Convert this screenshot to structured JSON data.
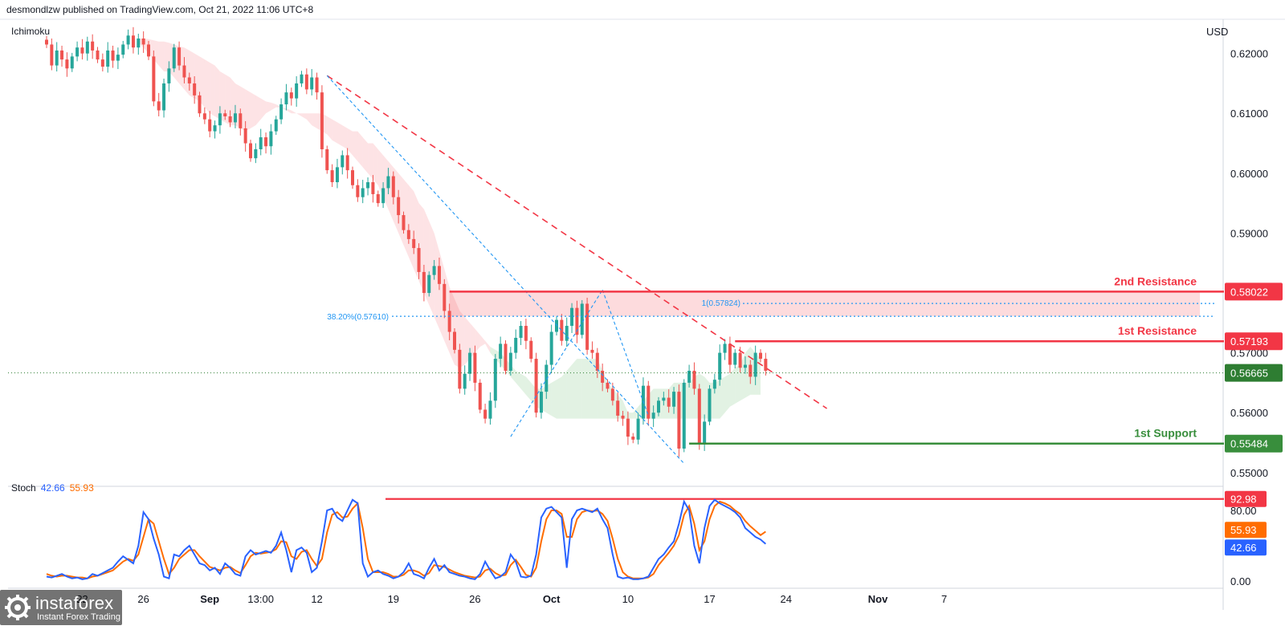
{
  "header": {
    "publisher_line": "desmondlzw published on TradingView.com, Oct 21, 2022 11:06 UTC+8",
    "indicator_name": "Ichimoku",
    "currency": "USD"
  },
  "stoch": {
    "label": "Stoch",
    "k_value": "42.66",
    "d_value": "55.93",
    "k_color": "#2962ff",
    "d_color": "#ff6d00",
    "level_80": "80.00",
    "level_0": "0.00"
  },
  "watermark": {
    "brand": "instaforex",
    "tagline": "Instant Forex Trading",
    "icon": "instaforex-logo-icon"
  },
  "chart_data": {
    "type": "candlestick",
    "symbol_currency": "USD",
    "y_axis_ticks": [
      0.62,
      0.61,
      0.6,
      0.59,
      0.58,
      0.57,
      0.56,
      0.55
    ],
    "y_axis_tick_labels": [
      "0.62000",
      "0.61000",
      "0.60000",
      "0.59000",
      "",
      "0.57000",
      "0.56000",
      "0.55000"
    ],
    "ylim": [
      0.5485,
      0.6225
    ],
    "x_axis_labels": [
      {
        "label": "22",
        "bar": 7,
        "bold": false
      },
      {
        "label": "26",
        "bar": 19,
        "bold": false
      },
      {
        "label": "Sep",
        "bar": 32,
        "bold": true
      },
      {
        "label": "13:00",
        "bar": 42,
        "bold": false
      },
      {
        "label": "12",
        "bar": 53,
        "bold": false
      },
      {
        "label": "19",
        "bar": 68,
        "bold": false
      },
      {
        "label": "26",
        "bar": 84,
        "bold": false
      },
      {
        "label": "Oct",
        "bar": 99,
        "bold": true
      },
      {
        "label": "10",
        "bar": 114,
        "bold": false
      },
      {
        "label": "17",
        "bar": 130,
        "bold": false
      },
      {
        "label": "24",
        "bar": 145,
        "bold": false
      },
      {
        "label": "Nov",
        "bar": 163,
        "bold": true
      },
      {
        "label": "7",
        "bar": 176,
        "bold": false
      }
    ],
    "close_series": [
      0.6215,
      0.618,
      0.6205,
      0.619,
      0.6175,
      0.6195,
      0.621,
      0.62,
      0.622,
      0.6205,
      0.619,
      0.6178,
      0.6205,
      0.6188,
      0.6198,
      0.6215,
      0.623,
      0.621,
      0.6225,
      0.6215,
      0.6195,
      0.612,
      0.6105,
      0.615,
      0.6175,
      0.621,
      0.618,
      0.616,
      0.615,
      0.613,
      0.61,
      0.609,
      0.607,
      0.608,
      0.61,
      0.6095,
      0.6085,
      0.61,
      0.6075,
      0.605,
      0.6025,
      0.604,
      0.606,
      0.6045,
      0.607,
      0.609,
      0.6115,
      0.6135,
      0.6125,
      0.615,
      0.6165,
      0.614,
      0.616,
      0.6135,
      0.604,
      0.6005,
      0.5985,
      0.601,
      0.603,
      0.6005,
      0.598,
      0.596,
      0.5975,
      0.5985,
      0.5965,
      0.595,
      0.5975,
      0.5995,
      0.596,
      0.593,
      0.5905,
      0.589,
      0.5875,
      0.5835,
      0.58,
      0.583,
      0.5845,
      0.5815,
      0.577,
      0.5735,
      0.5705,
      0.564,
      0.5665,
      0.57,
      0.565,
      0.5605,
      0.559,
      0.562,
      0.569,
      0.5715,
      0.567,
      0.57,
      0.5725,
      0.5745,
      0.572,
      0.569,
      0.56,
      0.5635,
      0.568,
      0.5735,
      0.5755,
      0.572,
      0.5745,
      0.5775,
      0.573,
      0.5782,
      0.5705,
      0.57,
      0.567,
      0.565,
      0.564,
      0.562,
      0.5595,
      0.559,
      0.556,
      0.5555,
      0.559,
      0.5645,
      0.559,
      0.56,
      0.562,
      0.5625,
      0.561,
      0.5635,
      0.554,
      0.565,
      0.567,
      0.564,
      0.555,
      0.5585,
      0.564,
      0.5655,
      0.57,
      0.5715,
      0.568,
      0.57,
      0.5675,
      0.568,
      0.566,
      0.57,
      0.569,
      0.567
    ],
    "ichimoku_cloud": {
      "start_bar": 18,
      "span_a": [
        0.6218,
        0.621,
        0.62,
        0.619,
        0.618,
        0.617,
        0.617,
        0.616,
        0.615,
        0.614,
        0.613,
        0.6125,
        0.612,
        0.611,
        0.61,
        0.6095,
        0.609,
        0.6085,
        0.608,
        0.608,
        0.6075,
        0.607,
        0.6075,
        0.608,
        0.609,
        0.61,
        0.6105,
        0.611,
        0.611,
        0.6105,
        0.61,
        0.61,
        0.6095,
        0.609,
        0.608,
        0.6075,
        0.607,
        0.6065,
        0.6055,
        0.605,
        0.6045,
        0.604,
        0.603,
        0.602,
        0.601,
        0.6,
        0.599,
        0.598,
        0.596,
        0.594,
        0.592,
        0.59,
        0.588,
        0.586,
        0.584,
        0.582,
        0.58,
        0.578,
        0.576,
        0.574,
        0.572,
        0.57,
        0.568,
        0.5675,
        0.568,
        0.569,
        0.57,
        0.571,
        0.5715,
        0.571,
        0.5705,
        0.57,
        0.569,
        0.568,
        0.567,
        0.5665,
        0.566,
        0.565,
        0.564,
        0.564,
        0.5645,
        0.565,
        0.5655,
        0.566,
        0.567,
        0.568,
        0.569,
        0.569,
        0.569,
        0.569,
        0.569,
        0.567,
        0.565,
        0.564,
        0.563,
        0.562,
        0.56,
        0.56,
        0.561,
        0.562,
        0.563,
        0.564,
        0.564,
        0.564,
        0.564,
        0.565,
        0.565,
        0.565,
        0.565,
        0.566,
        0.5665,
        0.566,
        0.565,
        0.565,
        0.5655,
        0.566,
        0.5665,
        0.5675,
        0.568,
        0.57,
        0.571,
        0.57,
        0.569
      ],
      "span_b": [
        0.6225,
        0.6225,
        0.6224,
        0.6222,
        0.622,
        0.622,
        0.6218,
        0.6215,
        0.6212,
        0.621,
        0.6205,
        0.62,
        0.6195,
        0.619,
        0.6185,
        0.618,
        0.617,
        0.6165,
        0.616,
        0.615,
        0.6145,
        0.614,
        0.6135,
        0.613,
        0.6125,
        0.612,
        0.6118,
        0.6115,
        0.611,
        0.6108,
        0.6105,
        0.61,
        0.61,
        0.61,
        0.61,
        0.61,
        0.61,
        0.6095,
        0.609,
        0.6085,
        0.608,
        0.6075,
        0.607,
        0.607,
        0.606,
        0.605,
        0.605,
        0.604,
        0.603,
        0.602,
        0.601,
        0.6,
        0.599,
        0.598,
        0.597,
        0.595,
        0.594,
        0.592,
        0.59,
        0.587,
        0.584,
        0.581,
        0.579,
        0.577,
        0.576,
        0.575,
        0.574,
        0.573,
        0.572,
        0.57,
        0.569,
        0.568,
        0.567,
        0.566,
        0.565,
        0.564,
        0.563,
        0.562,
        0.561,
        0.5605,
        0.56,
        0.5595,
        0.559,
        0.559,
        0.559,
        0.559,
        0.559,
        0.559,
        0.559,
        0.559,
        0.559,
        0.559,
        0.559,
        0.559,
        0.559,
        0.559,
        0.559,
        0.559,
        0.559,
        0.559,
        0.559,
        0.559,
        0.559,
        0.559,
        0.559,
        0.559,
        0.559,
        0.559,
        0.559,
        0.559,
        0.559,
        0.559,
        0.559,
        0.559,
        0.559,
        0.56,
        0.561,
        0.5615,
        0.562,
        0.5625,
        0.563,
        0.563,
        0.563
      ]
    },
    "levels": [
      {
        "name": "2nd Resistance",
        "value": 0.58022,
        "label": "0.58022",
        "color": "#f23645",
        "from_bar": 79
      },
      {
        "name": "1st Resistance",
        "value": 0.57193,
        "label": "0.57193",
        "color": "#f23645",
        "from_bar": 135
      },
      {
        "name": "1st Support",
        "value": 0.55484,
        "label": "0.55484",
        "color": "#388e3c",
        "from_bar": 126
      }
    ],
    "current_price": {
      "value": 0.56665,
      "label": "0.56665",
      "color": "#2e7d32"
    },
    "fib": {
      "level_38_label": "38.20%(0.57610)",
      "level_38_value": 0.5761,
      "level_1_label": "1(0.57824)",
      "level_1_value": 0.57824,
      "color": "#2196f3"
    },
    "resistance_zone": {
      "top": 0.58022,
      "bottom": 0.5761,
      "color": "#f23645"
    },
    "trendlines": [
      {
        "style": "dashed",
        "color": "#f23645",
        "from": {
          "bar": 55,
          "value": 0.6163
        },
        "to": {
          "bar": 153,
          "value": 0.5607
        }
      },
      {
        "style": "dashed",
        "color": "#2196f3",
        "from": {
          "bar": 55,
          "value": 0.6163
        },
        "to": {
          "bar": 125,
          "value": 0.5515
        }
      },
      {
        "style": "dashed",
        "color": "#2196f3",
        "from": {
          "bar": 91,
          "value": 0.556
        },
        "to": {
          "bar": 109,
          "value": 0.5805
        }
      },
      {
        "style": "dashed",
        "color": "#2196f3",
        "from": {
          "bar": 109,
          "value": 0.5805
        },
        "to": {
          "bar": 118,
          "value": 0.5595
        }
      }
    ],
    "stochastic": {
      "overbought_level": {
        "value": 92.98,
        "label": "92.98",
        "color": "#f23645"
      },
      "k_series": [
        5,
        4,
        6,
        8,
        5,
        3,
        4,
        2,
        3,
        8,
        6,
        9,
        12,
        15,
        22,
        28,
        24,
        20,
        40,
        78,
        70,
        48,
        30,
        5,
        3,
        30,
        28,
        35,
        40,
        30,
        20,
        18,
        12,
        15,
        8,
        20,
        15,
        8,
        6,
        28,
        35,
        30,
        32,
        34,
        32,
        40,
        55,
        35,
        10,
        35,
        38,
        32,
        10,
        15,
        45,
        80,
        82,
        72,
        68,
        80,
        92,
        88,
        20,
        5,
        10,
        12,
        8,
        6,
        3,
        5,
        10,
        20,
        8,
        6,
        3,
        15,
        25,
        12,
        18,
        10,
        8,
        6,
        5,
        3,
        2,
        8,
        22,
        12,
        3,
        5,
        10,
        30,
        22,
        5,
        4,
        6,
        30,
        72,
        82,
        84,
        78,
        72,
        15,
        70,
        80,
        82,
        80,
        78,
        82,
        70,
        60,
        30,
        5,
        3,
        4,
        2,
        2,
        3,
        5,
        15,
        25,
        30,
        38,
        45,
        65,
        90,
        80,
        40,
        20,
        60,
        85,
        92,
        88,
        85,
        82,
        78,
        72,
        60,
        55,
        50,
        47,
        42
      ],
      "d_series": [
        8,
        6,
        5,
        6,
        6,
        5,
        4,
        4,
        3,
        5,
        6,
        8,
        10,
        12,
        17,
        22,
        25,
        23,
        30,
        50,
        70,
        65,
        45,
        25,
        8,
        15,
        25,
        30,
        35,
        35,
        28,
        22,
        16,
        14,
        12,
        15,
        16,
        12,
        9,
        18,
        28,
        32,
        31,
        32,
        33,
        36,
        45,
        44,
        28,
        25,
        33,
        35,
        25,
        17,
        25,
        55,
        75,
        78,
        72,
        73,
        82,
        88,
        60,
        25,
        10,
        10,
        10,
        8,
        5,
        5,
        7,
        12,
        12,
        10,
        6,
        9,
        18,
        17,
        16,
        13,
        10,
        8,
        6,
        5,
        4,
        5,
        12,
        14,
        9,
        6,
        7,
        18,
        24,
        16,
        7,
        5,
        15,
        45,
        70,
        80,
        80,
        76,
        50,
        50,
        70,
        78,
        80,
        79,
        80,
        76,
        68,
        48,
        25,
        10,
        5,
        3,
        3,
        3,
        4,
        8,
        18,
        25,
        32,
        40,
        52,
        75,
        85,
        65,
        35,
        45,
        70,
        85,
        90,
        88,
        85,
        80,
        76,
        68,
        62,
        57,
        52,
        56
      ]
    }
  }
}
